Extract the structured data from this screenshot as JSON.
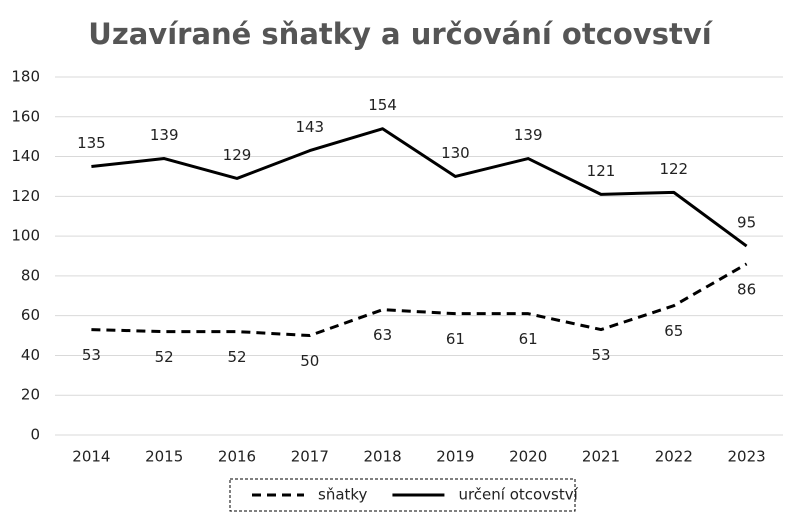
{
  "chart_data": {
    "type": "line",
    "title": "Uzavírané sňatky a určování otcovství",
    "categories": [
      "2014",
      "2015",
      "2016",
      "2017",
      "2018",
      "2019",
      "2020",
      "2021",
      "2022",
      "2023"
    ],
    "series": [
      {
        "name": "sňatky",
        "color": "#000000",
        "dashed": true,
        "label_position": "below",
        "values": [
          53,
          52,
          52,
          50,
          63,
          61,
          61,
          53,
          65,
          86
        ]
      },
      {
        "name": "určení otcovství",
        "color": "#000000",
        "dashed": false,
        "label_position": "above",
        "values": [
          135,
          139,
          129,
          143,
          154,
          130,
          139,
          121,
          122,
          95
        ]
      }
    ],
    "ylim": [
      0,
      180
    ],
    "yticks": [
      0,
      20,
      40,
      60,
      80,
      100,
      120,
      140,
      160,
      180
    ],
    "grid": true,
    "legend": "bottom"
  }
}
